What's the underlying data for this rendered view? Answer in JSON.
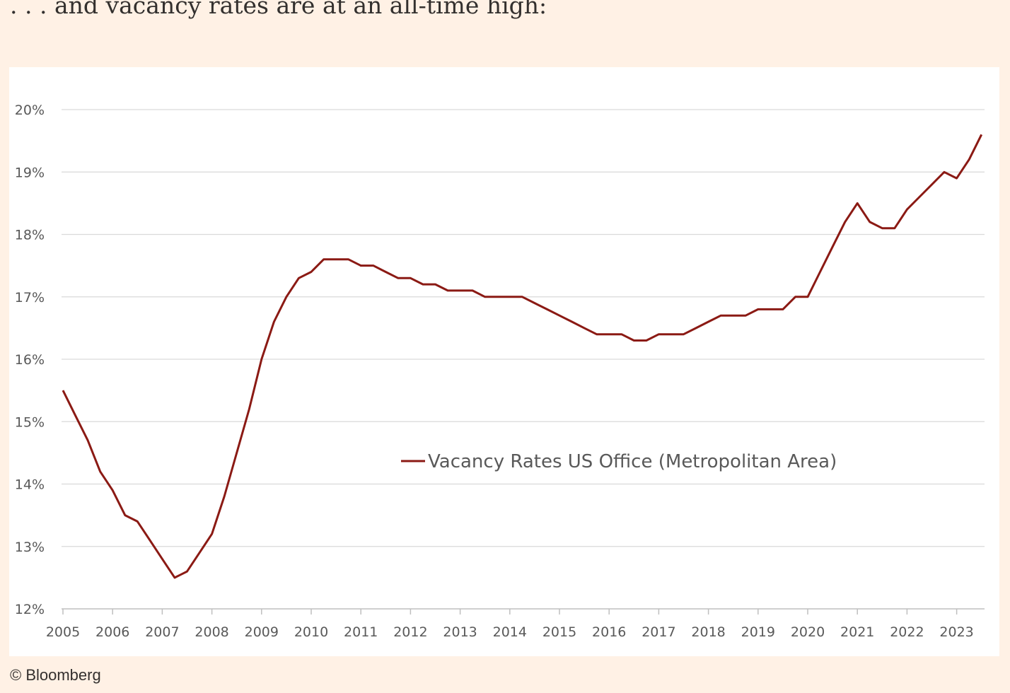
{
  "title": ". . . and vacancy rates are at an all-time high:",
  "credit": "© Bloomberg",
  "chart_data": {
    "type": "line",
    "title": "",
    "xlabel": "",
    "ylabel": "",
    "xlim": [
      2005,
      2023.5
    ],
    "ylim": [
      12,
      20
    ],
    "grid": true,
    "legend_position": "center",
    "x_ticks": [
      "2005",
      "2006",
      "2007",
      "2008",
      "2009",
      "2010",
      "2011",
      "2012",
      "2013",
      "2014",
      "2015",
      "2016",
      "2017",
      "2018",
      "2019",
      "2020",
      "2021",
      "2022",
      "2023"
    ],
    "y_ticks": [
      "12%",
      "13%",
      "14%",
      "15%",
      "16%",
      "17%",
      "18%",
      "19%",
      "20%"
    ],
    "x_start": 2005,
    "x_step": 0.25,
    "series": [
      {
        "name": "Vacancy Rates US Office (Metropolitan Area)",
        "color": "#8b1a14",
        "values": [
          15.5,
          15.1,
          14.7,
          14.2,
          13.9,
          13.5,
          13.4,
          13.1,
          12.8,
          12.5,
          12.6,
          12.9,
          13.2,
          13.8,
          14.5,
          15.2,
          16.0,
          16.6,
          17.0,
          17.3,
          17.4,
          17.6,
          17.6,
          17.6,
          17.5,
          17.5,
          17.4,
          17.3,
          17.3,
          17.2,
          17.2,
          17.1,
          17.1,
          17.1,
          17.0,
          17.0,
          17.0,
          17.0,
          16.9,
          16.8,
          16.7,
          16.6,
          16.5,
          16.4,
          16.4,
          16.4,
          16.3,
          16.3,
          16.4,
          16.4,
          16.4,
          16.5,
          16.6,
          16.7,
          16.7,
          16.7,
          16.8,
          16.8,
          16.8,
          17.0,
          17.0,
          17.4,
          17.8,
          18.2,
          18.5,
          18.2,
          18.1,
          18.1,
          18.4,
          18.6,
          18.8,
          19.0,
          18.9,
          19.2,
          19.6
        ]
      }
    ]
  }
}
